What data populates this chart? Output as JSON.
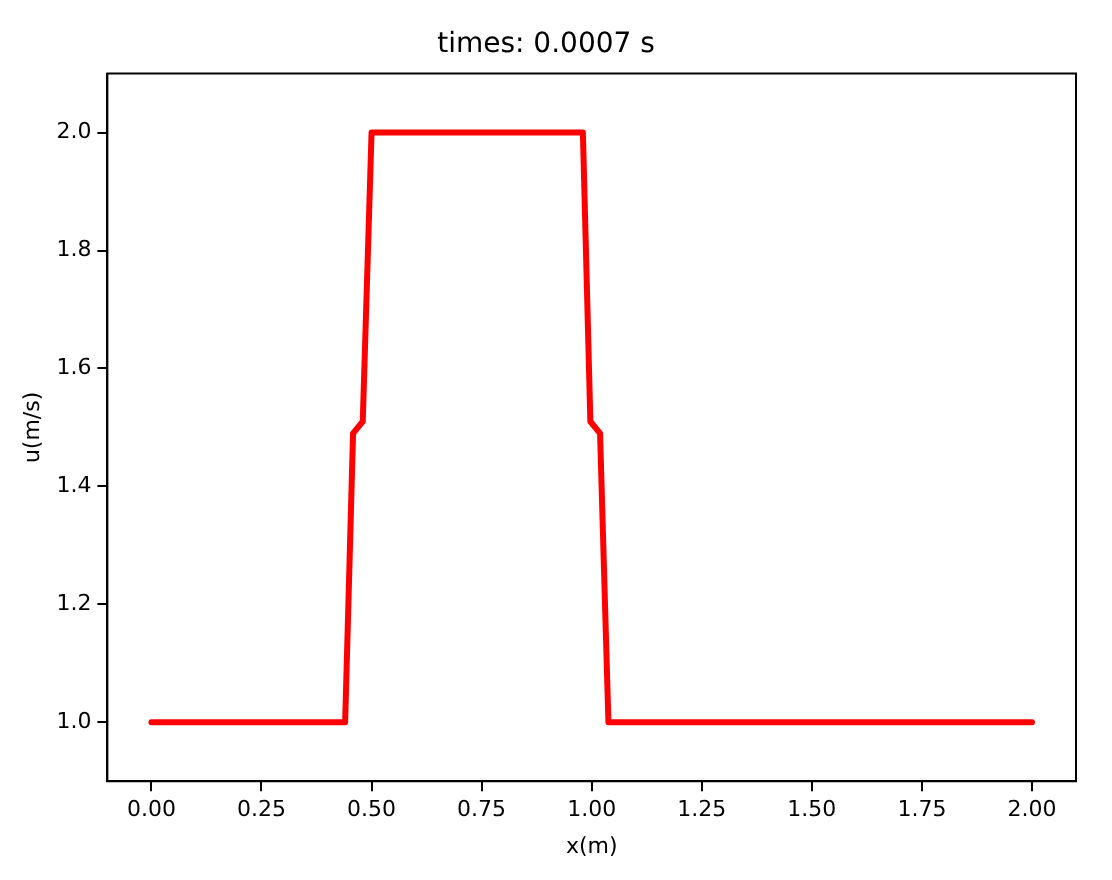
{
  "chart_data": {
    "type": "line",
    "title": "times: 0.0007 s",
    "xlabel": "x(m)",
    "ylabel": "u(m/s)",
    "x": [
      0,
      0.44,
      0.458,
      0.48,
      0.5,
      0.98,
      0.997,
      1.019,
      1.038,
      2.0
    ],
    "series": [
      {
        "color": "#ff0000",
        "values": [
          1.0,
          1.0,
          1.49,
          1.51,
          2.0,
          2.0,
          1.51,
          1.49,
          1.0,
          1.0
        ]
      }
    ],
    "xlim": [
      -0.1,
      2.1
    ],
    "xticks": [
      {
        "value": 0,
        "label": "0.00"
      },
      {
        "value": 0.25,
        "label": "0.25"
      },
      {
        "value": 0.5,
        "label": "0.50"
      },
      {
        "value": 0.75,
        "label": "0.75"
      },
      {
        "value": 1,
        "label": "1.00"
      },
      {
        "value": 1.25,
        "label": "1.25"
      },
      {
        "value": 1.5,
        "label": "1.50"
      },
      {
        "value": 1.75,
        "label": "1.75"
      },
      {
        "value": 2,
        "label": "2.00"
      }
    ],
    "ylim": [
      0.9,
      2.1
    ],
    "yticks": [
      {
        "value": 1,
        "label": "1.0"
      },
      {
        "value": 1.2,
        "label": "1.2"
      },
      {
        "value": 1.4,
        "label": "1.4"
      },
      {
        "value": 1.6,
        "label": "1.6"
      },
      {
        "value": 1.8,
        "label": "1.8"
      },
      {
        "value": 2,
        "label": "2.0"
      }
    ],
    "grid": false,
    "legend": false,
    "marker": "none",
    "line_style": "solid"
  }
}
